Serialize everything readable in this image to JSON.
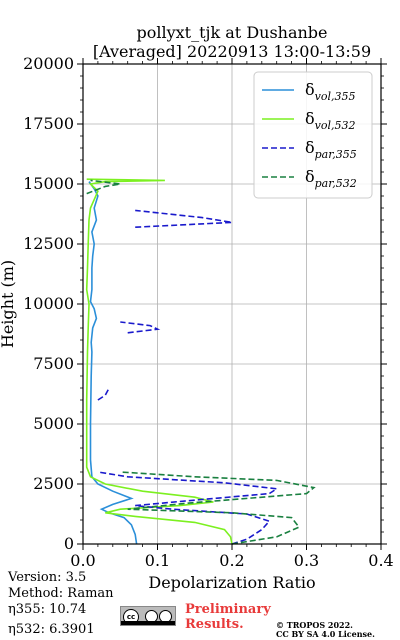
{
  "title_line1": "pollyxt_tjk at Dushanbe",
  "title_line2": "[Averaged] 20220913 13:00-13:59",
  "info": {
    "version": "Version: 3.5",
    "method": "Method: Raman",
    "eta355": "η355:  10.74",
    "eta532": "η532: 6.3901"
  },
  "preliminary_line1": "Preliminary",
  "preliminary_line2": "Results.",
  "copyright_line1": "© TROPOS 2022.",
  "copyright_line2": "CC BY SA 4.0 License.",
  "license_badge": "cc",
  "chart_data": {
    "type": "line",
    "xlabel": "Depolarization Ratio",
    "ylabel": "Height (m)",
    "xlim": [
      0,
      0.4
    ],
    "ylim": [
      0,
      20000
    ],
    "xticks": [
      0.0,
      0.1,
      0.2,
      0.3,
      0.4
    ],
    "yticks": [
      0,
      2500,
      5000,
      7500,
      10000,
      12500,
      15000,
      17500,
      20000
    ],
    "grid": true,
    "legend_position": "top-right",
    "series": [
      {
        "name": "δvol,355",
        "color": "#2b8fd9",
        "style": "solid",
        "points": [
          [
            0.072,
            0
          ],
          [
            0.07,
            400
          ],
          [
            0.065,
            800
          ],
          [
            0.055,
            1100
          ],
          [
            0.035,
            1300
          ],
          [
            0.025,
            1450
          ],
          [
            0.04,
            1650
          ],
          [
            0.065,
            1900
          ],
          [
            0.04,
            2200
          ],
          [
            0.02,
            2500
          ],
          [
            0.012,
            2800
          ],
          [
            0.01,
            3500
          ],
          [
            0.01,
            5000
          ],
          [
            0.011,
            7000
          ],
          [
            0.012,
            8000
          ],
          [
            0.011,
            8400
          ],
          [
            0.013,
            9000
          ],
          [
            0.018,
            9400
          ],
          [
            0.015,
            9800
          ],
          [
            0.01,
            10100
          ],
          [
            0.012,
            10600
          ],
          [
            0.012,
            11500
          ],
          [
            0.013,
            12000
          ],
          [
            0.015,
            12500
          ],
          [
            0.012,
            13000
          ],
          [
            0.018,
            13500
          ],
          [
            0.015,
            14000
          ],
          [
            0.02,
            14500
          ],
          [
            0.015,
            14800
          ],
          [
            0.008,
            15100
          ]
        ]
      },
      {
        "name": "δvol,532",
        "color": "#7cf020",
        "style": "solid",
        "points": [
          [
            0.2,
            0
          ],
          [
            0.198,
            300
          ],
          [
            0.19,
            600
          ],
          [
            0.15,
            900
          ],
          [
            0.07,
            1150
          ],
          [
            0.03,
            1300
          ],
          [
            0.05,
            1450
          ],
          [
            0.13,
            1600
          ],
          [
            0.175,
            1750
          ],
          [
            0.15,
            1950
          ],
          [
            0.08,
            2200
          ],
          [
            0.03,
            2500
          ],
          [
            0.01,
            2800
          ],
          [
            0.005,
            3200
          ],
          [
            0.005,
            6000
          ],
          [
            0.006,
            8000
          ],
          [
            0.007,
            9000
          ],
          [
            0.008,
            10000
          ],
          [
            0.005,
            10600
          ],
          [
            0.006,
            11500
          ],
          [
            0.007,
            12500
          ],
          [
            0.008,
            13500
          ],
          [
            0.01,
            14000
          ],
          [
            0.02,
            14700
          ],
          [
            0.01,
            15000
          ],
          [
            0.03,
            15100
          ],
          [
            0.11,
            15150
          ],
          [
            0.005,
            15200
          ]
        ]
      },
      {
        "name": "δpar,355",
        "color": "#1a1acc",
        "style": "dashed",
        "points": [
          [
            0.2,
            0
          ],
          [
            0.22,
            200
          ],
          [
            0.24,
            600
          ],
          [
            0.25,
            950
          ],
          [
            0.22,
            1250
          ],
          [
            0.12,
            1450
          ],
          [
            0.07,
            1600
          ],
          [
            0.14,
            1800
          ],
          [
            0.25,
            2100
          ],
          [
            0.26,
            2300
          ],
          [
            0.19,
            2550
          ],
          [
            0.06,
            2800
          ],
          [
            0.02,
            3000
          ]
        ],
        "extra_segments": [
          [
            [
              0.02,
              6000
            ],
            [
              0.03,
              6200
            ],
            [
              0.035,
              6500
            ]
          ],
          [
            [
              0.06,
              8800
            ],
            [
              0.1,
              8950
            ],
            [
              0.09,
              9100
            ],
            [
              0.05,
              9250
            ]
          ],
          [
            [
              0.07,
              13200
            ],
            [
              0.2,
              13400
            ],
            [
              0.16,
              13600
            ],
            [
              0.1,
              13800
            ],
            [
              0.07,
              13900
            ]
          ]
        ]
      },
      {
        "name": "δpar,532",
        "color": "#1a8040",
        "style": "dashed",
        "points": [
          [
            0.2,
            0
          ],
          [
            0.26,
            300
          ],
          [
            0.29,
            700
          ],
          [
            0.28,
            1100
          ],
          [
            0.2,
            1300
          ],
          [
            0.06,
            1450
          ],
          [
            0.14,
            1700
          ],
          [
            0.3,
            2100
          ],
          [
            0.31,
            2350
          ],
          [
            0.26,
            2650
          ],
          [
            0.15,
            2800
          ],
          [
            0.05,
            3000
          ]
        ],
        "extra_segments": [
          [
            [
              0.005,
              14600
            ],
            [
              0.03,
              14900
            ],
            [
              0.05,
              15000
            ],
            [
              0.01,
              15150
            ]
          ]
        ]
      }
    ]
  }
}
